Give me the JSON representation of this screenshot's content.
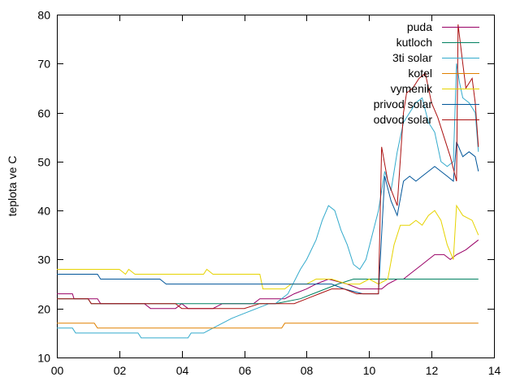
{
  "chart_data": {
    "type": "line",
    "title": "",
    "xlabel": "",
    "ylabel": "teplota ve C",
    "xlim": [
      0,
      14
    ],
    "ylim": [
      10,
      80
    ],
    "x_ticks": [
      0,
      2,
      4,
      6,
      8,
      10,
      12,
      14
    ],
    "x_tick_labels": [
      "00",
      "02",
      "04",
      "06",
      "08",
      "10",
      "12",
      "14"
    ],
    "y_ticks": [
      10,
      20,
      30,
      40,
      50,
      60,
      70,
      80
    ],
    "y_tick_labels": [
      "10",
      "20",
      "30",
      "40",
      "50",
      "60",
      "70",
      "80"
    ],
    "grid": false,
    "legend_position": "top-right",
    "series": [
      {
        "name": "puda",
        "color": "#990066",
        "points": [
          [
            0,
            23
          ],
          [
            0.5,
            23
          ],
          [
            0.55,
            22
          ],
          [
            1.3,
            22
          ],
          [
            1.4,
            21
          ],
          [
            2.8,
            21
          ],
          [
            3.0,
            20
          ],
          [
            3.8,
            20
          ],
          [
            4.0,
            21
          ],
          [
            4.2,
            20
          ],
          [
            5.0,
            20
          ],
          [
            5.3,
            21
          ],
          [
            6.3,
            21
          ],
          [
            6.5,
            22
          ],
          [
            7.3,
            22
          ],
          [
            7.6,
            23
          ],
          [
            8.0,
            24
          ],
          [
            8.3,
            25
          ],
          [
            8.7,
            26
          ],
          [
            9.3,
            25
          ],
          [
            9.7,
            24
          ],
          [
            10.4,
            24
          ],
          [
            10.6,
            25
          ],
          [
            10.9,
            26
          ],
          [
            11.1,
            26
          ],
          [
            11.3,
            27
          ],
          [
            11.5,
            28
          ],
          [
            11.7,
            29
          ],
          [
            11.9,
            30
          ],
          [
            12.1,
            31
          ],
          [
            12.4,
            31
          ],
          [
            12.6,
            30
          ],
          [
            12.8,
            31
          ],
          [
            13.1,
            32
          ],
          [
            13.3,
            33
          ],
          [
            13.5,
            34
          ]
        ]
      },
      {
        "name": "kutloch",
        "color": "#008060",
        "points": [
          [
            0,
            22
          ],
          [
            1.0,
            22
          ],
          [
            1.1,
            21
          ],
          [
            2.0,
            21
          ],
          [
            4.0,
            21
          ],
          [
            5.0,
            21
          ],
          [
            7.0,
            21
          ],
          [
            7.8,
            22
          ],
          [
            8.2,
            23
          ],
          [
            8.6,
            24
          ],
          [
            9.0,
            25
          ],
          [
            9.5,
            26
          ],
          [
            10.0,
            26
          ],
          [
            13.5,
            26
          ]
        ]
      },
      {
        "name": "3ti solar",
        "color": "#33aacc",
        "points": [
          [
            0,
            16
          ],
          [
            0.5,
            16
          ],
          [
            0.6,
            15
          ],
          [
            2.6,
            15
          ],
          [
            2.7,
            14
          ],
          [
            4.2,
            14
          ],
          [
            4.3,
            15
          ],
          [
            4.7,
            15
          ],
          [
            5.0,
            16
          ],
          [
            5.3,
            17
          ],
          [
            5.6,
            18
          ],
          [
            6.0,
            19
          ],
          [
            6.4,
            20
          ],
          [
            6.8,
            21
          ],
          [
            7.0,
            21
          ],
          [
            7.4,
            23
          ],
          [
            7.8,
            28
          ],
          [
            8.0,
            30
          ],
          [
            8.3,
            34
          ],
          [
            8.5,
            38
          ],
          [
            8.7,
            41
          ],
          [
            8.9,
            40
          ],
          [
            9.1,
            36
          ],
          [
            9.3,
            33
          ],
          [
            9.5,
            29
          ],
          [
            9.7,
            28
          ],
          [
            9.9,
            30
          ],
          [
            10.1,
            35
          ],
          [
            10.3,
            40
          ],
          [
            10.5,
            48
          ],
          [
            10.7,
            44
          ],
          [
            10.9,
            52
          ],
          [
            11.1,
            58
          ],
          [
            11.3,
            60
          ],
          [
            11.5,
            62
          ],
          [
            11.7,
            63
          ],
          [
            11.9,
            58
          ],
          [
            12.1,
            56
          ],
          [
            12.3,
            50
          ],
          [
            12.5,
            49
          ],
          [
            12.7,
            50
          ],
          [
            12.8,
            70
          ],
          [
            12.9,
            66
          ],
          [
            13.0,
            63
          ],
          [
            13.2,
            62
          ],
          [
            13.4,
            60
          ],
          [
            13.5,
            52
          ]
        ]
      },
      {
        "name": "kotel",
        "color": "#e08000",
        "points": [
          [
            0,
            17
          ],
          [
            1.2,
            17
          ],
          [
            1.3,
            16
          ],
          [
            7.2,
            16
          ],
          [
            7.3,
            17
          ],
          [
            13.5,
            17
          ]
        ]
      },
      {
        "name": "vymenik",
        "color": "#e6d300",
        "points": [
          [
            0,
            28
          ],
          [
            2.0,
            28
          ],
          [
            2.2,
            27
          ],
          [
            2.3,
            28
          ],
          [
            2.5,
            27
          ],
          [
            4.7,
            27
          ],
          [
            4.8,
            28
          ],
          [
            5.0,
            27
          ],
          [
            6.5,
            27
          ],
          [
            6.6,
            24
          ],
          [
            7.3,
            24
          ],
          [
            7.5,
            25
          ],
          [
            8.0,
            25
          ],
          [
            8.3,
            26
          ],
          [
            8.8,
            26
          ],
          [
            9.3,
            25
          ],
          [
            9.7,
            25
          ],
          [
            10.0,
            26
          ],
          [
            10.3,
            25
          ],
          [
            10.6,
            26
          ],
          [
            10.8,
            33
          ],
          [
            11.0,
            37
          ],
          [
            11.3,
            37
          ],
          [
            11.5,
            38
          ],
          [
            11.7,
            37
          ],
          [
            11.9,
            39
          ],
          [
            12.1,
            40
          ],
          [
            12.3,
            38
          ],
          [
            12.5,
            33
          ],
          [
            12.7,
            30
          ],
          [
            12.8,
            41
          ],
          [
            13.0,
            39
          ],
          [
            13.3,
            38
          ],
          [
            13.5,
            35
          ]
        ]
      },
      {
        "name": "privod solar",
        "color": "#005599",
        "points": [
          [
            0,
            27
          ],
          [
            1.3,
            27
          ],
          [
            1.4,
            26
          ],
          [
            3.3,
            26
          ],
          [
            3.5,
            25
          ],
          [
            7.5,
            25
          ],
          [
            8.8,
            25
          ],
          [
            9.2,
            24
          ],
          [
            9.8,
            23
          ],
          [
            10.3,
            23
          ],
          [
            10.5,
            47
          ],
          [
            10.7,
            42
          ],
          [
            10.9,
            39
          ],
          [
            11.1,
            46
          ],
          [
            11.3,
            47
          ],
          [
            11.5,
            46
          ],
          [
            11.7,
            47
          ],
          [
            11.9,
            48
          ],
          [
            12.1,
            49
          ],
          [
            12.3,
            48
          ],
          [
            12.5,
            47
          ],
          [
            12.7,
            46
          ],
          [
            12.8,
            54
          ],
          [
            13.0,
            51
          ],
          [
            13.2,
            52
          ],
          [
            13.4,
            51
          ],
          [
            13.5,
            48
          ]
        ]
      },
      {
        "name": "odvod solar",
        "color": "#aa1111",
        "points": [
          [
            0,
            22
          ],
          [
            1.0,
            22
          ],
          [
            1.1,
            21
          ],
          [
            3.8,
            21
          ],
          [
            4.0,
            20
          ],
          [
            6.0,
            20
          ],
          [
            6.5,
            21
          ],
          [
            7.6,
            21
          ],
          [
            8.0,
            22
          ],
          [
            8.4,
            23
          ],
          [
            8.8,
            24
          ],
          [
            9.2,
            24
          ],
          [
            9.6,
            23
          ],
          [
            10.3,
            23
          ],
          [
            10.4,
            53
          ],
          [
            10.6,
            46
          ],
          [
            10.9,
            41
          ],
          [
            11.1,
            60
          ],
          [
            11.2,
            64
          ],
          [
            11.4,
            65
          ],
          [
            11.6,
            67
          ],
          [
            11.8,
            68
          ],
          [
            12.0,
            62
          ],
          [
            12.2,
            59
          ],
          [
            12.4,
            55
          ],
          [
            12.6,
            51
          ],
          [
            12.8,
            46
          ],
          [
            12.85,
            78
          ],
          [
            13.0,
            70
          ],
          [
            13.1,
            65
          ],
          [
            13.3,
            67
          ],
          [
            13.4,
            62
          ],
          [
            13.5,
            53
          ]
        ]
      }
    ]
  }
}
